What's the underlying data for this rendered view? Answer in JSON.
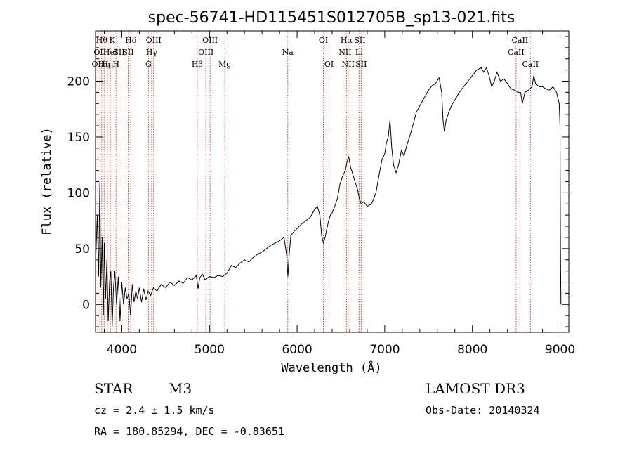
{
  "chart_data": {
    "type": "line",
    "title": "spec-56741-HD115451S012705B_sp13-021.fits",
    "xlabel": "Wavelength (Å)",
    "ylabel": "Flux (relative)",
    "xlim": [
      3700,
      9100
    ],
    "ylim": [
      -25,
      245
    ],
    "xticks": [
      4000,
      5000,
      6000,
      7000,
      8000,
      9000
    ],
    "yticks": [
      0,
      50,
      100,
      150,
      200
    ],
    "series": [
      {
        "name": "spectrum",
        "points": [
          [
            3700,
            35
          ],
          [
            3720,
            80
          ],
          [
            3735,
            25
          ],
          [
            3750,
            110
          ],
          [
            3760,
            15
          ],
          [
            3775,
            60
          ],
          [
            3790,
            -10
          ],
          [
            3800,
            55
          ],
          [
            3815,
            5
          ],
          [
            3830,
            40
          ],
          [
            3845,
            -15
          ],
          [
            3860,
            20
          ],
          [
            3875,
            30
          ],
          [
            3890,
            -20
          ],
          [
            3905,
            15
          ],
          [
            3920,
            30
          ],
          [
            3940,
            0
          ],
          [
            3960,
            25
          ],
          [
            3980,
            -15
          ],
          [
            4000,
            20
          ],
          [
            4020,
            0
          ],
          [
            4040,
            15
          ],
          [
            4060,
            5
          ],
          [
            4080,
            10
          ],
          [
            4100,
            -10
          ],
          [
            4120,
            18
          ],
          [
            4140,
            2
          ],
          [
            4160,
            12
          ],
          [
            4180,
            5
          ],
          [
            4200,
            15
          ],
          [
            4225,
            2
          ],
          [
            4250,
            14
          ],
          [
            4275,
            4
          ],
          [
            4300,
            12
          ],
          [
            4330,
            8
          ],
          [
            4360,
            15
          ],
          [
            4400,
            12
          ],
          [
            4450,
            18
          ],
          [
            4500,
            15
          ],
          [
            4550,
            20
          ],
          [
            4600,
            17
          ],
          [
            4650,
            21
          ],
          [
            4700,
            19
          ],
          [
            4750,
            24
          ],
          [
            4800,
            22
          ],
          [
            4850,
            26
          ],
          [
            4870,
            14
          ],
          [
            4890,
            24
          ],
          [
            4920,
            27
          ],
          [
            4950,
            22
          ],
          [
            5000,
            25
          ],
          [
            5050,
            24
          ],
          [
            5100,
            26
          ],
          [
            5150,
            25
          ],
          [
            5200,
            28
          ],
          [
            5250,
            35
          ],
          [
            5300,
            33
          ],
          [
            5350,
            37
          ],
          [
            5400,
            40
          ],
          [
            5450,
            38
          ],
          [
            5500,
            42
          ],
          [
            5550,
            45
          ],
          [
            5600,
            47
          ],
          [
            5650,
            50
          ],
          [
            5700,
            53
          ],
          [
            5750,
            55
          ],
          [
            5800,
            57
          ],
          [
            5850,
            60
          ],
          [
            5880,
            45
          ],
          [
            5895,
            25
          ],
          [
            5910,
            45
          ],
          [
            5930,
            62
          ],
          [
            5960,
            65
          ],
          [
            6000,
            68
          ],
          [
            6050,
            72
          ],
          [
            6100,
            75
          ],
          [
            6150,
            78
          ],
          [
            6200,
            85
          ],
          [
            6230,
            88
          ],
          [
            6260,
            80
          ],
          [
            6280,
            62
          ],
          [
            6300,
            55
          ],
          [
            6320,
            60
          ],
          [
            6340,
            68
          ],
          [
            6360,
            75
          ],
          [
            6380,
            80
          ],
          [
            6400,
            82
          ],
          [
            6430,
            88
          ],
          [
            6460,
            95
          ],
          [
            6490,
            108
          ],
          [
            6520,
            115
          ],
          [
            6550,
            120
          ],
          [
            6570,
            128
          ],
          [
            6590,
            132
          ],
          [
            6610,
            123
          ],
          [
            6630,
            118
          ],
          [
            6660,
            110
          ],
          [
            6690,
            103
          ],
          [
            6710,
            95
          ],
          [
            6730,
            90
          ],
          [
            6760,
            92
          ],
          [
            6800,
            88
          ],
          [
            6850,
            90
          ],
          [
            6900,
            100
          ],
          [
            6940,
            118
          ],
          [
            6970,
            130
          ],
          [
            7000,
            135
          ],
          [
            7020,
            145
          ],
          [
            7040,
            150
          ],
          [
            7060,
            165
          ],
          [
            7080,
            140
          ],
          [
            7100,
            125
          ],
          [
            7130,
            118
          ],
          [
            7160,
            126
          ],
          [
            7190,
            138
          ],
          [
            7220,
            133
          ],
          [
            7250,
            142
          ],
          [
            7290,
            152
          ],
          [
            7330,
            163
          ],
          [
            7360,
            172
          ],
          [
            7400,
            178
          ],
          [
            7450,
            185
          ],
          [
            7500,
            192
          ],
          [
            7540,
            196
          ],
          [
            7580,
            198
          ],
          [
            7620,
            203
          ],
          [
            7650,
            190
          ],
          [
            7665,
            165
          ],
          [
            7680,
            155
          ],
          [
            7700,
            165
          ],
          [
            7730,
            172
          ],
          [
            7760,
            178
          ],
          [
            7800,
            183
          ],
          [
            7850,
            190
          ],
          [
            7900,
            195
          ],
          [
            7950,
            200
          ],
          [
            8000,
            205
          ],
          [
            8050,
            210
          ],
          [
            8100,
            212
          ],
          [
            8130,
            208
          ],
          [
            8160,
            212
          ],
          [
            8190,
            205
          ],
          [
            8220,
            195
          ],
          [
            8250,
            200
          ],
          [
            8280,
            208
          ],
          [
            8320,
            200
          ],
          [
            8360,
            202
          ],
          [
            8400,
            198
          ],
          [
            8440,
            193
          ],
          [
            8480,
            192
          ],
          [
            8520,
            190
          ],
          [
            8550,
            190
          ],
          [
            8570,
            180
          ],
          [
            8600,
            190
          ],
          [
            8640,
            192
          ],
          [
            8680,
            195
          ],
          [
            8700,
            205
          ],
          [
            8720,
            198
          ],
          [
            8760,
            195
          ],
          [
            8800,
            195
          ],
          [
            8840,
            193
          ],
          [
            8880,
            192
          ],
          [
            8920,
            195
          ],
          [
            8960,
            190
          ],
          [
            8990,
            180
          ],
          [
            9000,
            160
          ],
          [
            9005,
            50
          ],
          [
            9010,
            0
          ]
        ]
      }
    ],
    "line_markers": [
      {
        "wavelength": 3727,
        "row": 2,
        "label": "OII"
      },
      {
        "wavelength": 3750,
        "row": 1,
        "label": "OII"
      },
      {
        "wavelength": 3771,
        "row": 0,
        "label": "Hθ"
      },
      {
        "wavelength": 3798,
        "row": 2,
        "label": "Hη"
      },
      {
        "wavelength": 3835,
        "row": 2,
        "label": "Hη"
      },
      {
        "wavelength": 3869,
        "row": 1,
        "label": "HeI"
      },
      {
        "wavelength": 3889,
        "row": 0,
        "label": "K"
      },
      {
        "wavelength": 3934,
        "row": 2,
        "label": "H"
      },
      {
        "wavelength": 3968,
        "row": 1,
        "label": "SII"
      },
      {
        "wavelength": 4102,
        "row": 0,
        "label": "Hδ"
      },
      {
        "wavelength": 4072,
        "row": 1,
        "label": "SII"
      },
      {
        "wavelength": 4304,
        "row": 2,
        "label": "G"
      },
      {
        "wavelength": 4341,
        "row": 1,
        "label": "Hγ"
      },
      {
        "wavelength": 4363,
        "row": 0,
        "label": "OIII"
      },
      {
        "wavelength": 4861,
        "row": 2,
        "label": "Hβ"
      },
      {
        "wavelength": 4959,
        "row": 1,
        "label": "OIII"
      },
      {
        "wavelength": 5007,
        "row": 0,
        "label": "OIII"
      },
      {
        "wavelength": 5175,
        "row": 2,
        "label": "Mg"
      },
      {
        "wavelength": 5893,
        "row": 1,
        "label": "Na"
      },
      {
        "wavelength": 6300,
        "row": 0,
        "label": "OI"
      },
      {
        "wavelength": 6364,
        "row": 2,
        "label": "OI"
      },
      {
        "wavelength": 6548,
        "row": 1,
        "label": "NII"
      },
      {
        "wavelength": 6563,
        "row": 0,
        "label": "Hα"
      },
      {
        "wavelength": 6583,
        "row": 2,
        "label": "NII"
      },
      {
        "wavelength": 6707,
        "row": 1,
        "label": "Li"
      },
      {
        "wavelength": 6716,
        "row": 0,
        "label": "SII"
      },
      {
        "wavelength": 6731,
        "row": 2,
        "label": "SII"
      },
      {
        "wavelength": 8498,
        "row": 1,
        "label": "CaII"
      },
      {
        "wavelength": 8542,
        "row": 0,
        "label": "CaII"
      },
      {
        "wavelength": 8662,
        "row": 2,
        "label": "CaII"
      }
    ]
  },
  "info": {
    "object_class": "STAR",
    "subclass": "M3",
    "survey": "LAMOST DR3",
    "redshift": "cz = 2.4 ± 1.5 km/s",
    "obs_date": "Obs-Date: 20140324",
    "coordinates": "RA = 180.85294, DEC =  -0.83651"
  }
}
